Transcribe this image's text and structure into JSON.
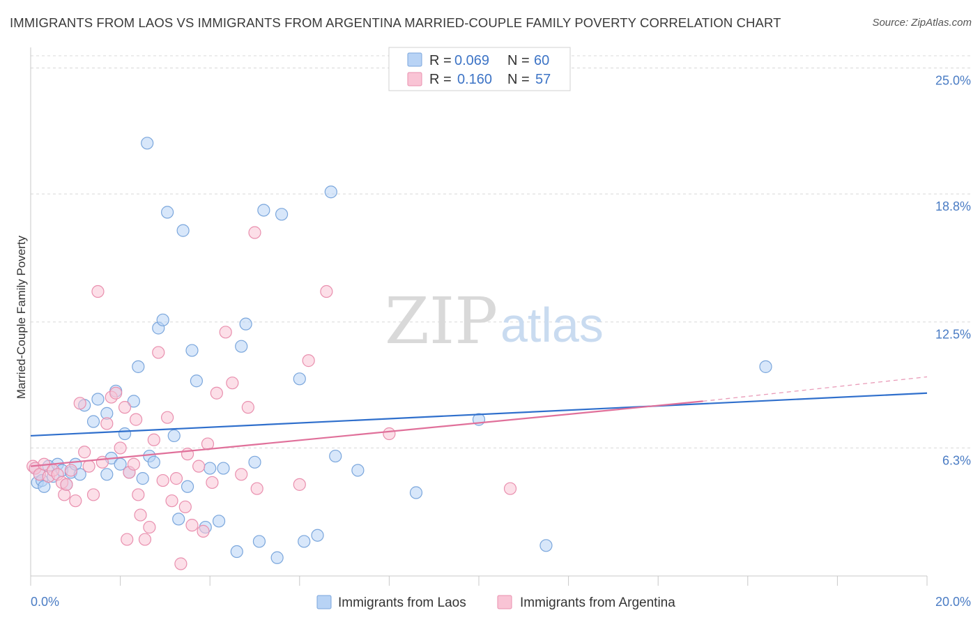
{
  "header": {
    "title": "IMMIGRANTS FROM LAOS VS IMMIGRANTS FROM ARGENTINA MARRIED-COUPLE FAMILY POVERTY CORRELATION CHART",
    "source": "Source: ZipAtlas.com"
  },
  "watermark": {
    "zip": "ZIP",
    "atlas": "atlas"
  },
  "colors": {
    "laos_fill": "#b8d3f5",
    "laos_stroke": "#7aa6dc",
    "laos_line": "#2f6fcc",
    "argentina_fill": "#f9c4d5",
    "argentina_stroke": "#e98fae",
    "argentina_line": "#e0709a",
    "grid": "#d8d8d8",
    "tick_text": "#4a7cc4"
  },
  "legend": {
    "rows": [
      {
        "r_label": "R =",
        "r_value": "0.069",
        "n_label": "N =",
        "n_value": "60"
      },
      {
        "r_label": "R =",
        "r_value": "0.160",
        "n_label": "N =",
        "n_value": "57"
      }
    ]
  },
  "chart_data": {
    "type": "scatter",
    "title": "IMMIGRANTS FROM LAOS VS IMMIGRANTS FROM ARGENTINA MARRIED-COUPLE FAMILY POVERTY CORRELATION CHART",
    "xlabel": "",
    "ylabel": "Married-Couple Family Poverty",
    "xlim": [
      0,
      20
    ],
    "ylim": [
      0,
      25.6
    ],
    "x_tick_labels": [
      "0.0%",
      "20.0%"
    ],
    "y_ticks": [
      6.3,
      12.5,
      18.8,
      25.0
    ],
    "y_tick_labels": [
      "6.3%",
      "12.5%",
      "18.8%",
      "25.0%"
    ],
    "grid": true,
    "legend_position": "top-center",
    "series": [
      {
        "name": "Immigrants from Laos",
        "r": 0.069,
        "n": 60,
        "trend": {
          "x": [
            0,
            20
          ],
          "y": [
            6.9,
            9.0
          ]
        },
        "points": [
          [
            0.1,
            5.3
          ],
          [
            0.15,
            4.6
          ],
          [
            0.2,
            5.0
          ],
          [
            0.25,
            4.7
          ],
          [
            0.3,
            4.4
          ],
          [
            0.4,
            5.4
          ],
          [
            0.5,
            4.9
          ],
          [
            0.6,
            5.5
          ],
          [
            0.7,
            5.2
          ],
          [
            0.8,
            4.5
          ],
          [
            0.9,
            5.1
          ],
          [
            1.0,
            5.5
          ],
          [
            1.1,
            5.0
          ],
          [
            1.2,
            8.4
          ],
          [
            1.4,
            7.6
          ],
          [
            1.5,
            8.7
          ],
          [
            1.7,
            8.0
          ],
          [
            1.7,
            5.0
          ],
          [
            1.8,
            5.8
          ],
          [
            1.9,
            9.1
          ],
          [
            2.0,
            5.5
          ],
          [
            2.1,
            7.0
          ],
          [
            2.2,
            5.1
          ],
          [
            2.3,
            8.6
          ],
          [
            2.4,
            10.3
          ],
          [
            2.5,
            4.8
          ],
          [
            2.6,
            21.3
          ],
          [
            2.65,
            5.9
          ],
          [
            2.75,
            5.6
          ],
          [
            2.85,
            12.2
          ],
          [
            2.95,
            12.6
          ],
          [
            3.05,
            17.9
          ],
          [
            3.2,
            6.9
          ],
          [
            3.3,
            2.8
          ],
          [
            3.4,
            17.0
          ],
          [
            3.5,
            4.4
          ],
          [
            3.6,
            11.1
          ],
          [
            3.7,
            9.6
          ],
          [
            3.9,
            2.4
          ],
          [
            4.0,
            5.3
          ],
          [
            4.2,
            2.7
          ],
          [
            4.3,
            5.3
          ],
          [
            4.6,
            1.2
          ],
          [
            4.7,
            11.3
          ],
          [
            4.8,
            12.4
          ],
          [
            5.0,
            5.6
          ],
          [
            5.1,
            1.7
          ],
          [
            5.2,
            18.0
          ],
          [
            5.5,
            0.9
          ],
          [
            5.6,
            17.8
          ],
          [
            6.0,
            9.7
          ],
          [
            6.1,
            1.7
          ],
          [
            6.4,
            2.0
          ],
          [
            6.7,
            18.9
          ],
          [
            6.8,
            5.9
          ],
          [
            7.3,
            5.2
          ],
          [
            8.6,
            4.1
          ],
          [
            10.0,
            7.7
          ],
          [
            11.5,
            1.5
          ],
          [
            16.4,
            10.3
          ]
        ]
      },
      {
        "name": "Immigrants from Argentina",
        "r": 0.16,
        "n": 57,
        "trend": {
          "x": [
            0,
            15
          ],
          "y": [
            5.4,
            8.6
          ]
        },
        "trend_extension": {
          "x": [
            15,
            20
          ],
          "y": [
            8.6,
            9.8
          ]
        },
        "points": [
          [
            0.05,
            5.4
          ],
          [
            0.1,
            5.3
          ],
          [
            0.2,
            5.0
          ],
          [
            0.3,
            5.5
          ],
          [
            0.4,
            4.9
          ],
          [
            0.5,
            5.2
          ],
          [
            0.6,
            5.0
          ],
          [
            0.7,
            4.6
          ],
          [
            0.75,
            4.0
          ],
          [
            0.8,
            4.5
          ],
          [
            0.9,
            5.2
          ],
          [
            1.0,
            3.7
          ],
          [
            1.1,
            8.5
          ],
          [
            1.2,
            6.1
          ],
          [
            1.3,
            5.4
          ],
          [
            1.4,
            4.0
          ],
          [
            1.5,
            14.0
          ],
          [
            1.6,
            5.6
          ],
          [
            1.7,
            7.5
          ],
          [
            1.8,
            8.8
          ],
          [
            1.9,
            9.0
          ],
          [
            2.0,
            6.3
          ],
          [
            2.1,
            8.3
          ],
          [
            2.15,
            1.8
          ],
          [
            2.2,
            5.1
          ],
          [
            2.3,
            5.5
          ],
          [
            2.35,
            7.7
          ],
          [
            2.4,
            4.0
          ],
          [
            2.45,
            3.0
          ],
          [
            2.55,
            1.8
          ],
          [
            2.65,
            2.4
          ],
          [
            2.75,
            6.7
          ],
          [
            2.85,
            11.0
          ],
          [
            2.95,
            4.7
          ],
          [
            3.05,
            7.8
          ],
          [
            3.15,
            3.7
          ],
          [
            3.25,
            4.8
          ],
          [
            3.35,
            0.6
          ],
          [
            3.45,
            3.4
          ],
          [
            3.5,
            6.0
          ],
          [
            3.6,
            2.5
          ],
          [
            3.75,
            5.4
          ],
          [
            3.85,
            2.2
          ],
          [
            3.95,
            6.5
          ],
          [
            4.05,
            4.6
          ],
          [
            4.15,
            9.0
          ],
          [
            4.35,
            12.0
          ],
          [
            4.5,
            9.5
          ],
          [
            4.7,
            5.0
          ],
          [
            4.85,
            8.3
          ],
          [
            5.05,
            4.3
          ],
          [
            5.0,
            16.9
          ],
          [
            6.0,
            4.5
          ],
          [
            6.2,
            10.6
          ],
          [
            6.6,
            14.0
          ],
          [
            8.0,
            7.0
          ],
          [
            10.7,
            4.3
          ]
        ]
      }
    ]
  },
  "bottom_legend": {
    "items": [
      {
        "label": "Immigrants from Laos"
      },
      {
        "label": "Immigrants from Argentina"
      }
    ]
  }
}
